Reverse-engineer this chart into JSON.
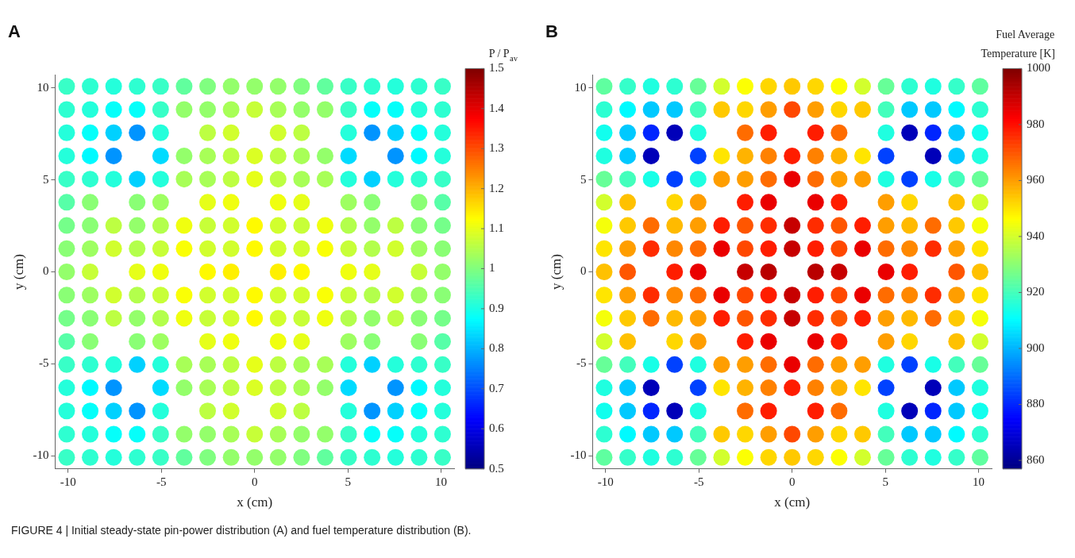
{
  "chart_data": [
    {
      "type": "scatter",
      "title": "A",
      "xlabel": "x (cm)",
      "ylabel": "y (cm)",
      "clabel": "P / P$_{av}$",
      "clim": [
        0.5,
        1.5
      ],
      "cticks": [
        0.5,
        0.6,
        0.7,
        0.8,
        0.9,
        1,
        1.1,
        1.2,
        1.3,
        1.4,
        1.5
      ],
      "xlim": [
        -10.7,
        10.7
      ],
      "ylim": [
        -10.7,
        10.7
      ],
      "xticks": [
        -10,
        -5,
        0,
        5,
        10
      ],
      "yticks": [
        -10,
        -5,
        0,
        5,
        10
      ],
      "marker": "circle",
      "annotations": [
        "FIGURE 4 | Initial steady-state pin-power distribution (A) and fuel temperature distribution (B)."
      ],
      "x": [
        -10.08,
        -8.82,
        -7.56,
        -6.3,
        -5.04,
        -3.78,
        -2.52,
        -1.26,
        0,
        1.26,
        2.52,
        3.78,
        5.04,
        6.3,
        7.56,
        8.82,
        10.08,
        -10.08,
        -8.82,
        -7.56,
        -6.3,
        -5.04,
        -3.78,
        -2.52,
        -1.26,
        0,
        1.26,
        2.52,
        3.78,
        5.04,
        6.3,
        7.56,
        8.82,
        10.08,
        -10.08,
        -8.82,
        -7.56,
        -6.3,
        -5.04,
        -2.52,
        -1.26,
        1.26,
        2.52,
        5.04,
        6.3,
        7.56,
        8.82,
        10.08,
        -10.08,
        -8.82,
        -7.56,
        -5.04,
        -3.78,
        -2.52,
        -1.26,
        0,
        1.26,
        2.52,
        3.78,
        5.04,
        7.56,
        8.82,
        10.08,
        -10.08,
        -8.82,
        -7.56,
        -6.3,
        -5.04,
        -3.78,
        -2.52,
        -1.26,
        0,
        1.26,
        2.52,
        3.78,
        5.04,
        6.3,
        7.56,
        8.82,
        10.08,
        -10.08,
        -8.82,
        -6.3,
        -5.04,
        -2.52,
        -1.26,
        1.26,
        2.52,
        5.04,
        6.3,
        8.82,
        10.08,
        -10.08,
        -8.82,
        -7.56,
        -6.3,
        -5.04,
        -3.78,
        -2.52,
        -1.26,
        0,
        1.26,
        2.52,
        3.78,
        5.04,
        6.3,
        7.56,
        8.82,
        10.08,
        -10.08,
        -8.82,
        -7.56,
        -6.3,
        -5.04,
        -3.78,
        -2.52,
        -1.26,
        0,
        1.26,
        2.52,
        3.78,
        5.04,
        6.3,
        7.56,
        8.82,
        10.08,
        -10.08,
        -8.82,
        -6.3,
        -5.04,
        -2.52,
        -1.26,
        1.26,
        2.52,
        5.04,
        6.3,
        8.82,
        10.08,
        -10.08,
        -8.82,
        -7.56,
        -6.3,
        -5.04,
        -3.78,
        -2.52,
        -1.26,
        0,
        1.26,
        2.52,
        3.78,
        5.04,
        6.3,
        7.56,
        8.82,
        10.08,
        -10.08,
        -8.82,
        -7.56,
        -6.3,
        -5.04,
        -3.78,
        -2.52,
        -1.26,
        0,
        1.26,
        2.52,
        3.78,
        5.04,
        6.3,
        7.56,
        8.82,
        10.08,
        -10.08,
        -8.82,
        -6.3,
        -5.04,
        -2.52,
        -1.26,
        1.26,
        2.52,
        5.04,
        6.3,
        8.82,
        10.08,
        -10.08,
        -8.82,
        -7.56,
        -6.3,
        -5.04,
        -3.78,
        -2.52,
        -1.26,
        0,
        1.26,
        2.52,
        3.78,
        5.04,
        6.3,
        7.56,
        8.82,
        10.08,
        -10.08,
        -8.82,
        -7.56,
        -5.04,
        -3.78,
        -2.52,
        -1.26,
        0,
        1.26,
        2.52,
        3.78,
        5.04,
        7.56,
        8.82,
        10.08,
        -10.08,
        -8.82,
        -7.56,
        -6.3,
        -5.04,
        -2.52,
        -1.26,
        1.26,
        2.52,
        5.04,
        6.3,
        7.56,
        8.82,
        10.08,
        -10.08,
        -8.82,
        -7.56,
        -6.3,
        -5.04,
        -3.78,
        -2.52,
        -1.26,
        0,
        1.26,
        2.52,
        3.78,
        5.04,
        6.3,
        7.56,
        8.82,
        10.08,
        -10.08,
        -8.82,
        -7.56,
        -6.3,
        -5.04,
        -3.78,
        -2.52,
        -1.26,
        0,
        1.26,
        2.52,
        3.78,
        5.04,
        6.3,
        7.56,
        8.82,
        10.08
      ],
      "values": [
        10.08,
        10.08,
        10.08,
        10.08,
        10.08,
        10.08,
        10.08,
        10.08,
        10.08,
        10.08,
        10.08,
        10.08,
        10.08,
        10.08,
        10.08,
        10.08,
        10.08,
        8.82,
        8.82,
        8.82,
        8.82,
        8.82,
        8.82,
        8.82,
        8.82,
        8.82,
        8.82,
        8.82,
        8.82,
        8.82,
        8.82,
        8.82,
        8.82,
        8.82,
        7.56,
        7.56,
        7.56,
        7.56,
        7.56,
        7.56,
        7.56,
        7.56,
        7.56,
        7.56,
        7.56,
        7.56,
        7.56,
        7.56,
        6.3,
        6.3,
        6.3,
        6.3,
        6.3,
        6.3,
        6.3,
        6.3,
        6.3,
        6.3,
        6.3,
        6.3,
        6.3,
        6.3,
        6.3,
        5.04,
        5.04,
        5.04,
        5.04,
        5.04,
        5.04,
        5.04,
        5.04,
        5.04,
        5.04,
        5.04,
        5.04,
        5.04,
        5.04,
        5.04,
        5.04,
        5.04,
        3.78,
        3.78,
        3.78,
        3.78,
        3.78,
        3.78,
        3.78,
        3.78,
        3.78,
        3.78,
        3.78,
        3.78,
        2.52,
        2.52,
        2.52,
        2.52,
        2.52,
        2.52,
        2.52,
        2.52,
        2.52,
        2.52,
        2.52,
        2.52,
        2.52,
        2.52,
        2.52,
        2.52,
        2.52,
        1.26,
        1.26,
        1.26,
        1.26,
        1.26,
        1.26,
        1.26,
        1.26,
        1.26,
        1.26,
        1.26,
        1.26,
        1.26,
        1.26,
        1.26,
        1.26,
        1.26,
        0,
        0,
        0,
        0,
        0,
        0,
        0,
        0,
        0,
        0,
        0,
        0,
        -1.26,
        -1.26,
        -1.26,
        -1.26,
        -1.26,
        -1.26,
        -1.26,
        -1.26,
        -1.26,
        -1.26,
        -1.26,
        -1.26,
        -1.26,
        -1.26,
        -1.26,
        -1.26,
        -1.26,
        -2.52,
        -2.52,
        -2.52,
        -2.52,
        -2.52,
        -2.52,
        -2.52,
        -2.52,
        -2.52,
        -2.52,
        -2.52,
        -2.52,
        -2.52,
        -2.52,
        -2.52,
        -2.52,
        -2.52,
        -3.78,
        -3.78,
        -3.78,
        -3.78,
        -3.78,
        -3.78,
        -3.78,
        -3.78,
        -3.78,
        -3.78,
        -3.78,
        -3.78,
        -5.04,
        -5.04,
        -5.04,
        -5.04,
        -5.04,
        -5.04,
        -5.04,
        -5.04,
        -5.04,
        -5.04,
        -5.04,
        -5.04,
        -5.04,
        -5.04,
        -5.04,
        -5.04,
        -5.04,
        -6.3,
        -6.3,
        -6.3,
        -6.3,
        -6.3,
        -6.3,
        -6.3,
        -6.3,
        -6.3,
        -6.3,
        -6.3,
        -6.3,
        -6.3,
        -6.3,
        -6.3,
        -7.56,
        -7.56,
        -7.56,
        -7.56,
        -7.56,
        -7.56,
        -7.56,
        -7.56,
        -7.56,
        -7.56,
        -7.56,
        -7.56,
        -7.56,
        -7.56,
        -8.82,
        -8.82,
        -8.82,
        -8.82,
        -8.82,
        -8.82,
        -8.82,
        -8.82,
        -8.82,
        -8.82,
        -8.82,
        -8.82,
        -8.82,
        -8.82,
        -8.82,
        -8.82,
        -8.82,
        -10.08,
        -10.08,
        -10.08,
        -10.08,
        -10.08,
        -10.08,
        -10.08,
        -10.08,
        -10.08,
        -10.08,
        -10.08,
        -10.08,
        -10.08,
        -10.08,
        -10.08,
        -10.08,
        -10.08
      ],
      "cvalues": [
        0.93,
        0.92,
        0.91,
        0.92,
        0.93,
        0.97,
        1.0,
        1.02,
        1.02,
        1.02,
        1.0,
        0.97,
        0.93,
        0.92,
        0.91,
        0.92,
        0.93,
        0.92,
        0.91,
        0.88,
        0.88,
        0.93,
        1.02,
        1.02,
        1.04,
        1.07,
        1.04,
        1.02,
        1.02,
        0.93,
        0.88,
        0.88,
        0.91,
        0.92,
        0.91,
        0.88,
        0.83,
        0.77,
        0.91,
        1.06,
        1.08,
        1.08,
        1.06,
        0.91,
        0.77,
        0.83,
        0.88,
        0.91,
        0.91,
        0.87,
        0.77,
        0.84,
        1.02,
        1.04,
        1.06,
        1.09,
        1.06,
        1.04,
        1.02,
        0.84,
        0.77,
        0.87,
        0.91,
        0.93,
        0.92,
        0.91,
        0.83,
        0.91,
        1.04,
        1.04,
        1.06,
        1.1,
        1.06,
        1.04,
        1.04,
        0.91,
        0.83,
        0.91,
        0.92,
        0.93,
        0.96,
        1.01,
        1.01,
        1.03,
        1.1,
        1.11,
        1.11,
        1.1,
        1.03,
        1.01,
        1.01,
        0.96,
        0.99,
        1.01,
        1.06,
        1.02,
        1.05,
        1.11,
        1.07,
        1.08,
        1.13,
        1.08,
        1.07,
        1.11,
        1.05,
        1.02,
        1.06,
        1.01,
        0.99,
        1.01,
        1.03,
        1.08,
        1.05,
        1.07,
        1.12,
        1.08,
        1.08,
        1.13,
        1.08,
        1.08,
        1.12,
        1.07,
        1.05,
        1.08,
        1.03,
        1.01,
        1.02,
        1.07,
        1.1,
        1.11,
        1.13,
        1.14,
        1.14,
        1.13,
        1.11,
        1.1,
        1.07,
        1.02,
        1.01,
        1.03,
        1.08,
        1.05,
        1.07,
        1.12,
        1.08,
        1.08,
        1.13,
        1.08,
        1.08,
        1.12,
        1.07,
        1.05,
        1.08,
        1.03,
        1.01,
        0.99,
        1.01,
        1.06,
        1.02,
        1.05,
        1.11,
        1.07,
        1.08,
        1.13,
        1.08,
        1.07,
        1.11,
        1.05,
        1.02,
        1.06,
        1.01,
        0.99,
        0.96,
        1.01,
        1.01,
        1.03,
        1.1,
        1.11,
        1.11,
        1.1,
        1.03,
        1.01,
        1.01,
        0.96,
        0.93,
        0.92,
        0.91,
        0.83,
        0.91,
        1.04,
        1.04,
        1.06,
        1.1,
        1.06,
        1.04,
        1.04,
        0.91,
        0.83,
        0.91,
        0.92,
        0.93,
        0.91,
        0.87,
        0.77,
        0.84,
        1.02,
        1.04,
        1.06,
        1.09,
        1.06,
        1.04,
        1.02,
        0.84,
        0.77,
        0.87,
        0.91,
        0.91,
        0.88,
        0.83,
        0.77,
        0.91,
        1.06,
        1.08,
        1.08,
        1.06,
        0.91,
        0.77,
        0.83,
        0.88,
        0.91,
        0.92,
        0.91,
        0.88,
        0.88,
        0.93,
        1.02,
        1.02,
        1.04,
        1.07,
        1.04,
        1.02,
        1.02,
        0.93,
        0.88,
        0.88,
        0.91,
        0.92,
        0.93,
        0.92,
        0.91,
        0.92,
        0.93,
        0.97,
        1.0,
        1.02,
        1.02,
        1.02,
        1.0,
        0.97,
        0.93,
        0.92,
        0.91,
        0.92,
        0.93
      ]
    },
    {
      "type": "scatter",
      "title": "B",
      "xlabel": "x (cm)",
      "ylabel": "y (cm)",
      "clabel": "Fuel Average Temperature [K]",
      "clim": [
        857,
        1000
      ],
      "cticks": [
        860,
        880,
        900,
        920,
        940,
        960,
        980,
        1000
      ],
      "xlim": [
        -10.7,
        10.7
      ],
      "ylim": [
        -10.7,
        10.7
      ],
      "xticks": [
        -10,
        -5,
        0,
        5,
        10
      ],
      "yticks": [
        -10,
        -5,
        0,
        5,
        10
      ],
      "marker": "circle",
      "x": [
        -10.08,
        -8.82,
        -7.56,
        -6.3,
        -5.04,
        -3.78,
        -2.52,
        -1.26,
        0,
        1.26,
        2.52,
        3.78,
        5.04,
        6.3,
        7.56,
        8.82,
        10.08,
        -10.08,
        -8.82,
        -7.56,
        -6.3,
        -5.04,
        -3.78,
        -2.52,
        -1.26,
        0,
        1.26,
        2.52,
        3.78,
        5.04,
        6.3,
        7.56,
        8.82,
        10.08,
        -10.08,
        -8.82,
        -7.56,
        -6.3,
        -5.04,
        -2.52,
        -1.26,
        1.26,
        2.52,
        5.04,
        6.3,
        7.56,
        8.82,
        10.08,
        -10.08,
        -8.82,
        -7.56,
        -5.04,
        -3.78,
        -2.52,
        -1.26,
        0,
        1.26,
        2.52,
        3.78,
        5.04,
        7.56,
        8.82,
        10.08,
        -10.08,
        -8.82,
        -7.56,
        -6.3,
        -5.04,
        -3.78,
        -2.52,
        -1.26,
        0,
        1.26,
        2.52,
        3.78,
        5.04,
        6.3,
        7.56,
        8.82,
        10.08,
        -10.08,
        -8.82,
        -6.3,
        -5.04,
        -2.52,
        -1.26,
        1.26,
        2.52,
        5.04,
        6.3,
        8.82,
        10.08,
        -10.08,
        -8.82,
        -7.56,
        -6.3,
        -5.04,
        -3.78,
        -2.52,
        -1.26,
        0,
        1.26,
        2.52,
        3.78,
        5.04,
        6.3,
        7.56,
        8.82,
        10.08,
        -10.08,
        -8.82,
        -7.56,
        -6.3,
        -5.04,
        -3.78,
        -2.52,
        -1.26,
        0,
        1.26,
        2.52,
        3.78,
        5.04,
        6.3,
        7.56,
        8.82,
        10.08,
        -10.08,
        -8.82,
        -6.3,
        -5.04,
        -2.52,
        -1.26,
        1.26,
        2.52,
        5.04,
        6.3,
        8.82,
        10.08,
        -10.08,
        -8.82,
        -7.56,
        -6.3,
        -5.04,
        -3.78,
        -2.52,
        -1.26,
        0,
        1.26,
        2.52,
        3.78,
        5.04,
        6.3,
        7.56,
        8.82,
        10.08,
        -10.08,
        -8.82,
        -7.56,
        -6.3,
        -5.04,
        -3.78,
        -2.52,
        -1.26,
        0,
        1.26,
        2.52,
        3.78,
        5.04,
        6.3,
        7.56,
        8.82,
        10.08,
        -10.08,
        -8.82,
        -6.3,
        -5.04,
        -2.52,
        -1.26,
        1.26,
        2.52,
        5.04,
        6.3,
        8.82,
        10.08,
        -10.08,
        -8.82,
        -7.56,
        -6.3,
        -5.04,
        -3.78,
        -2.52,
        -1.26,
        0,
        1.26,
        2.52,
        3.78,
        5.04,
        6.3,
        7.56,
        8.82,
        10.08,
        -10.08,
        -8.82,
        -7.56,
        -5.04,
        -3.78,
        -2.52,
        -1.26,
        0,
        1.26,
        2.52,
        3.78,
        5.04,
        7.56,
        8.82,
        10.08,
        -10.08,
        -8.82,
        -7.56,
        -6.3,
        -5.04,
        -2.52,
        -1.26,
        1.26,
        2.52,
        5.04,
        6.3,
        7.56,
        8.82,
        10.08,
        -10.08,
        -8.82,
        -7.56,
        -6.3,
        -5.04,
        -3.78,
        -2.52,
        -1.26,
        0,
        1.26,
        2.52,
        3.78,
        5.04,
        6.3,
        7.56,
        8.82,
        10.08,
        -10.08,
        -8.82,
        -7.56,
        -6.3,
        -5.04,
        -3.78,
        -2.52,
        -1.26,
        0,
        1.26,
        2.52,
        3.78,
        5.04,
        6.3,
        7.56,
        8.82,
        10.08
      ],
      "values": [
        10.08,
        10.08,
        10.08,
        10.08,
        10.08,
        10.08,
        10.08,
        10.08,
        10.08,
        10.08,
        10.08,
        10.08,
        10.08,
        10.08,
        10.08,
        10.08,
        10.08,
        8.82,
        8.82,
        8.82,
        8.82,
        8.82,
        8.82,
        8.82,
        8.82,
        8.82,
        8.82,
        8.82,
        8.82,
        8.82,
        8.82,
        8.82,
        8.82,
        8.82,
        7.56,
        7.56,
        7.56,
        7.56,
        7.56,
        7.56,
        7.56,
        7.56,
        7.56,
        7.56,
        7.56,
        7.56,
        7.56,
        7.56,
        6.3,
        6.3,
        6.3,
        6.3,
        6.3,
        6.3,
        6.3,
        6.3,
        6.3,
        6.3,
        6.3,
        6.3,
        6.3,
        6.3,
        6.3,
        5.04,
        5.04,
        5.04,
        5.04,
        5.04,
        5.04,
        5.04,
        5.04,
        5.04,
        5.04,
        5.04,
        5.04,
        5.04,
        5.04,
        5.04,
        5.04,
        5.04,
        3.78,
        3.78,
        3.78,
        3.78,
        3.78,
        3.78,
        3.78,
        3.78,
        3.78,
        3.78,
        3.78,
        3.78,
        2.52,
        2.52,
        2.52,
        2.52,
        2.52,
        2.52,
        2.52,
        2.52,
        2.52,
        2.52,
        2.52,
        2.52,
        2.52,
        2.52,
        2.52,
        2.52,
        2.52,
        1.26,
        1.26,
        1.26,
        1.26,
        1.26,
        1.26,
        1.26,
        1.26,
        1.26,
        1.26,
        1.26,
        1.26,
        1.26,
        1.26,
        1.26,
        1.26,
        1.26,
        0,
        0,
        0,
        0,
        0,
        0,
        0,
        0,
        0,
        0,
        0,
        0,
        -1.26,
        -1.26,
        -1.26,
        -1.26,
        -1.26,
        -1.26,
        -1.26,
        -1.26,
        -1.26,
        -1.26,
        -1.26,
        -1.26,
        -1.26,
        -1.26,
        -1.26,
        -1.26,
        -1.26,
        -2.52,
        -2.52,
        -2.52,
        -2.52,
        -2.52,
        -2.52,
        -2.52,
        -2.52,
        -2.52,
        -2.52,
        -2.52,
        -2.52,
        -2.52,
        -2.52,
        -2.52,
        -2.52,
        -2.52,
        -3.78,
        -3.78,
        -3.78,
        -3.78,
        -3.78,
        -3.78,
        -3.78,
        -3.78,
        -3.78,
        -3.78,
        -3.78,
        -3.78,
        -5.04,
        -5.04,
        -5.04,
        -5.04,
        -5.04,
        -5.04,
        -5.04,
        -5.04,
        -5.04,
        -5.04,
        -5.04,
        -5.04,
        -5.04,
        -5.04,
        -5.04,
        -5.04,
        -5.04,
        -6.3,
        -6.3,
        -6.3,
        -6.3,
        -6.3,
        -6.3,
        -6.3,
        -6.3,
        -6.3,
        -6.3,
        -6.3,
        -6.3,
        -6.3,
        -6.3,
        -6.3,
        -7.56,
        -7.56,
        -7.56,
        -7.56,
        -7.56,
        -7.56,
        -7.56,
        -7.56,
        -7.56,
        -7.56,
        -7.56,
        -7.56,
        -7.56,
        -7.56,
        -8.82,
        -8.82,
        -8.82,
        -8.82,
        -8.82,
        -8.82,
        -8.82,
        -8.82,
        -8.82,
        -8.82,
        -8.82,
        -8.82,
        -8.82,
        -8.82,
        -8.82,
        -8.82,
        -8.82,
        -10.08,
        -10.08,
        -10.08,
        -10.08,
        -10.08,
        -10.08,
        -10.08,
        -10.08,
        -10.08,
        -10.08,
        -10.08,
        -10.08,
        -10.08,
        -10.08,
        -10.08,
        -10.08,
        -10.08
      ],
      "cvalues": [
        924,
        918,
        915,
        917,
        925,
        940,
        946,
        952,
        954,
        952,
        946,
        940,
        925,
        917,
        915,
        918,
        924,
        917,
        910,
        903,
        903,
        920,
        954,
        952,
        960,
        972,
        960,
        952,
        954,
        920,
        903,
        903,
        910,
        917,
        913,
        903,
        880,
        865,
        915,
        967,
        978,
        978,
        967,
        915,
        865,
        880,
        903,
        913,
        915,
        903,
        865,
        884,
        950,
        957,
        964,
        978,
        964,
        957,
        950,
        884,
        865,
        903,
        915,
        925,
        920,
        914,
        884,
        915,
        960,
        960,
        967,
        985,
        967,
        960,
        960,
        915,
        884,
        914,
        920,
        925,
        940,
        955,
        952,
        960,
        978,
        985,
        985,
        978,
        960,
        952,
        955,
        940,
        945,
        954,
        967,
        956,
        960,
        978,
        970,
        976,
        990,
        976,
        970,
        978,
        960,
        956,
        967,
        954,
        945,
        950,
        960,
        976,
        963,
        967,
        985,
        972,
        978,
        990,
        978,
        972,
        985,
        967,
        963,
        976,
        960,
        950,
        955,
        970,
        978,
        985,
        990,
        992,
        992,
        990,
        985,
        978,
        970,
        955,
        950,
        960,
        976,
        963,
        967,
        985,
        972,
        978,
        990,
        978,
        972,
        985,
        967,
        963,
        976,
        960,
        950,
        945,
        954,
        967,
        956,
        960,
        978,
        970,
        976,
        990,
        976,
        970,
        978,
        960,
        956,
        967,
        954,
        945,
        940,
        955,
        952,
        960,
        978,
        985,
        985,
        978,
        960,
        952,
        955,
        940,
        925,
        920,
        914,
        884,
        915,
        960,
        960,
        967,
        985,
        967,
        960,
        960,
        915,
        884,
        914,
        920,
        925,
        915,
        903,
        865,
        884,
        950,
        957,
        964,
        978,
        964,
        957,
        950,
        884,
        865,
        903,
        915,
        913,
        903,
        880,
        865,
        915,
        967,
        978,
        978,
        967,
        915,
        865,
        880,
        903,
        913,
        917,
        910,
        903,
        903,
        920,
        954,
        952,
        960,
        972,
        960,
        952,
        954,
        920,
        903,
        903,
        910,
        917,
        924,
        918,
        915,
        917,
        925,
        940,
        946,
        952,
        954,
        952,
        946,
        940,
        925,
        917,
        915,
        918,
        924
      ]
    }
  ]
}
